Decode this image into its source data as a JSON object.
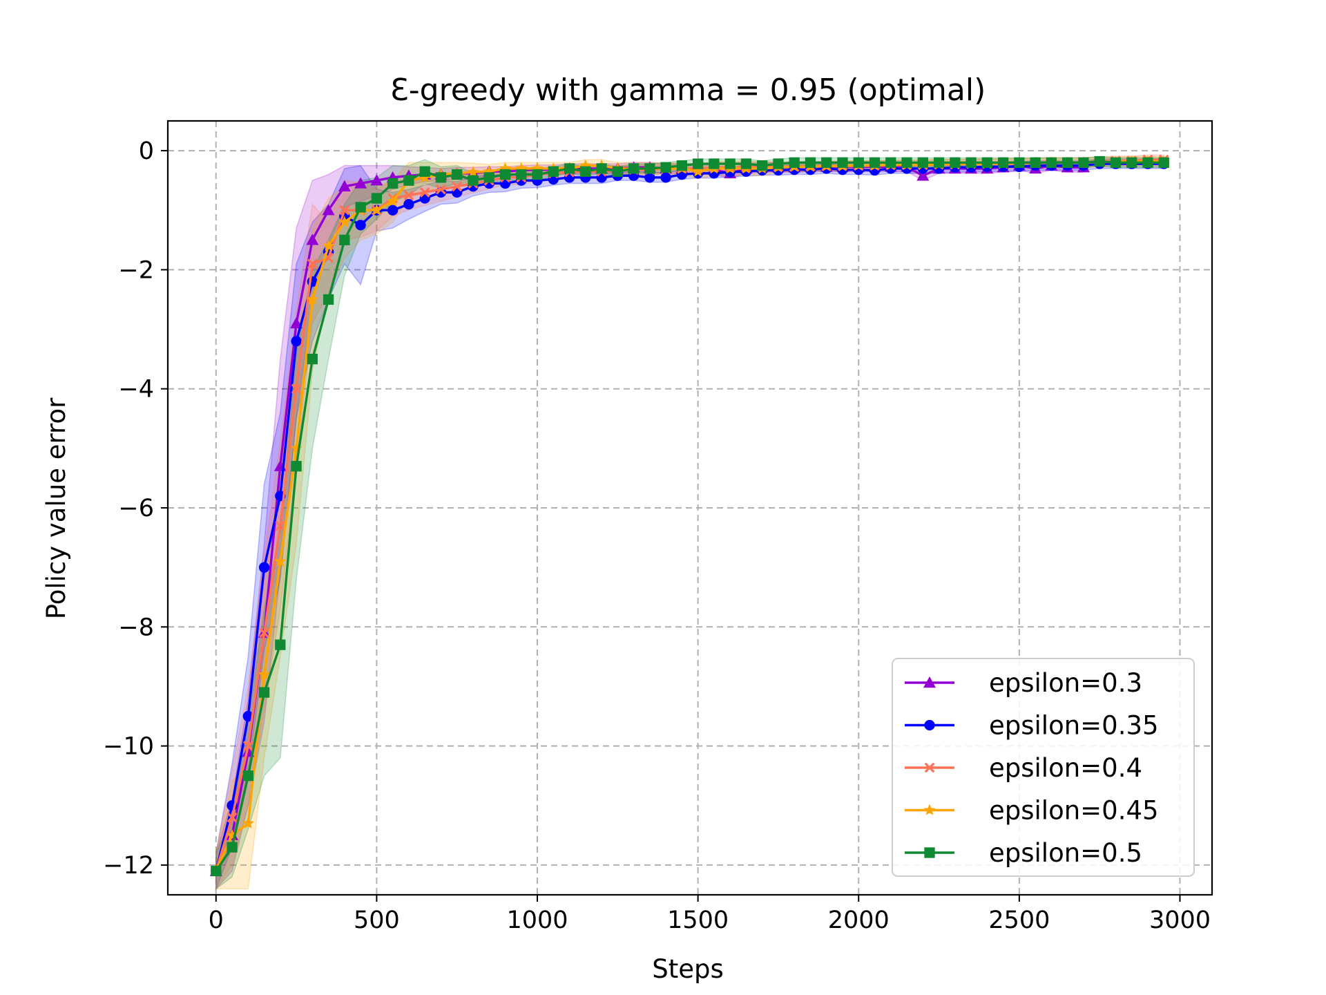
{
  "chart_data": {
    "type": "line",
    "title": "Ɛ-greedy with gamma = 0.95 (optimal)",
    "xlabel": "Steps",
    "ylabel": "Policy value error",
    "xlim": [
      -150,
      3100
    ],
    "ylim": [
      -12.5,
      0.5
    ],
    "xticks": [
      0,
      500,
      1000,
      1500,
      2000,
      2500,
      3000
    ],
    "xtick_labels": [
      "0",
      "500",
      "1000",
      "1500",
      "2000",
      "2500",
      "3000"
    ],
    "yticks": [
      0,
      -2,
      -4,
      -6,
      -8,
      -10,
      -12
    ],
    "ytick_labels": [
      "0",
      "−2",
      "−4",
      "−6",
      "−8",
      "−10",
      "−12"
    ],
    "grid": true,
    "legend_position": "lower-right",
    "series": [
      {
        "name": "epsilon=0.3",
        "color": "#9400D3",
        "marker": "triangle",
        "x": [
          0,
          50,
          100,
          150,
          200,
          250,
          300,
          350,
          400,
          450,
          500,
          550,
          600,
          650,
          700,
          750,
          800,
          850,
          900,
          950,
          1000,
          1050,
          1100,
          1150,
          1200,
          1250,
          1300,
          1350,
          1400,
          1450,
          1500,
          1550,
          1600,
          1650,
          1700,
          1750,
          1800,
          1850,
          1900,
          1950,
          2000,
          2050,
          2100,
          2150,
          2200,
          2250,
          2300,
          2350,
          2400,
          2450,
          2500,
          2550,
          2600,
          2650,
          2700
        ],
        "y": [
          -12.1,
          -11.5,
          -10.1,
          -8.1,
          -5.3,
          -2.9,
          -1.5,
          -1.0,
          -0.6,
          -0.55,
          -0.5,
          -0.45,
          -0.42,
          -0.4,
          -0.4,
          -0.38,
          -0.38,
          -0.35,
          -0.35,
          -0.33,
          -0.32,
          -0.32,
          -0.3,
          -0.3,
          -0.3,
          -0.3,
          -0.28,
          -0.28,
          -0.3,
          -0.3,
          -0.32,
          -0.32,
          -0.38,
          -0.3,
          -0.28,
          -0.28,
          -0.28,
          -0.27,
          -0.27,
          -0.27,
          -0.27,
          -0.27,
          -0.27,
          -0.27,
          -0.42,
          -0.3,
          -0.3,
          -0.3,
          -0.3,
          -0.28,
          -0.25,
          -0.3,
          -0.25,
          -0.28,
          -0.28
        ],
        "band": [
          0.3,
          0.6,
          0.9,
          1.5,
          1.8,
          1.6,
          1.0,
          0.6,
          0.35,
          0.3,
          0.25,
          0.2,
          0.15,
          0.12,
          0.1,
          0.1,
          0.1,
          0.08,
          0.08,
          0.08,
          0.08,
          0.08,
          0.08,
          0.08,
          0.08,
          0.08,
          0.08,
          0.08,
          0.08,
          0.08,
          0.08,
          0.08,
          0.08,
          0.08,
          0.08,
          0.08,
          0.08,
          0.08,
          0.08,
          0.08,
          0.08,
          0.08,
          0.08,
          0.08,
          0.08,
          0.08,
          0.08,
          0.08,
          0.08,
          0.08,
          0.08,
          0.08,
          0.08,
          0.08,
          0.08
        ]
      },
      {
        "name": "epsilon=0.35",
        "color": "#0000FF",
        "marker": "circle",
        "x": [
          0,
          50,
          100,
          150,
          200,
          250,
          300,
          350,
          400,
          450,
          500,
          550,
          600,
          650,
          700,
          750,
          800,
          850,
          900,
          950,
          1000,
          1050,
          1100,
          1150,
          1200,
          1250,
          1300,
          1350,
          1400,
          1450,
          1500,
          1550,
          1600,
          1650,
          1700,
          1750,
          1800,
          1850,
          1900,
          1950,
          2000,
          2050,
          2100,
          2150,
          2200,
          2250,
          2300,
          2350,
          2400,
          2450,
          2500,
          2550,
          2600,
          2650,
          2700,
          2750,
          2800,
          2850,
          2900,
          2950
        ],
        "y": [
          -12.1,
          -11.0,
          -9.5,
          -7.0,
          -5.8,
          -3.2,
          -2.2,
          -1.7,
          -1.1,
          -1.25,
          -1.0,
          -1.0,
          -0.9,
          -0.8,
          -0.7,
          -0.7,
          -0.6,
          -0.55,
          -0.55,
          -0.5,
          -0.5,
          -0.48,
          -0.45,
          -0.45,
          -0.45,
          -0.42,
          -0.42,
          -0.45,
          -0.45,
          -0.4,
          -0.38,
          -0.38,
          -0.36,
          -0.35,
          -0.33,
          -0.33,
          -0.32,
          -0.32,
          -0.3,
          -0.32,
          -0.32,
          -0.33,
          -0.3,
          -0.3,
          -0.3,
          -0.3,
          -0.28,
          -0.28,
          -0.27,
          -0.27,
          -0.27,
          -0.25,
          -0.25,
          -0.25,
          -0.25,
          -0.22,
          -0.22,
          -0.22,
          -0.22,
          -0.22
        ],
        "band": [
          0.3,
          0.7,
          1.0,
          1.4,
          1.4,
          1.3,
          1.0,
          0.8,
          0.8,
          1.0,
          0.35,
          0.3,
          0.25,
          0.22,
          0.2,
          0.18,
          0.16,
          0.15,
          0.14,
          0.13,
          0.12,
          0.1,
          0.1,
          0.1,
          0.1,
          0.08,
          0.08,
          0.08,
          0.08,
          0.08,
          0.08,
          0.08,
          0.08,
          0.08,
          0.08,
          0.08,
          0.08,
          0.08,
          0.08,
          0.08,
          0.08,
          0.08,
          0.08,
          0.08,
          0.08,
          0.08,
          0.08,
          0.08,
          0.08,
          0.08,
          0.08,
          0.08,
          0.08,
          0.08,
          0.08,
          0.08,
          0.08,
          0.08,
          0.08,
          0.08
        ]
      },
      {
        "name": "epsilon=0.4",
        "color": "#FF7256",
        "marker": "x",
        "x": [
          0,
          50,
          100,
          150,
          200,
          250,
          300,
          350,
          400,
          450,
          500,
          550,
          600,
          650,
          700,
          750,
          800,
          850,
          900,
          950,
          1000,
          1050,
          1100,
          1150,
          1200,
          1250,
          1300,
          1350,
          1400,
          1450,
          1500,
          1550,
          1600,
          1650,
          1700,
          1750,
          1800,
          1850,
          1900,
          1950,
          2000,
          2050,
          2100,
          2150,
          2200,
          2250,
          2300,
          2350,
          2400,
          2450,
          2500,
          2550,
          2600,
          2650,
          2700,
          2750,
          2800,
          2850,
          2900,
          2950
        ],
        "y": [
          -12.1,
          -11.2,
          -10.0,
          -8.1,
          -6.3,
          -4.0,
          -1.9,
          -1.8,
          -1.0,
          -1.0,
          -1.0,
          -0.8,
          -0.75,
          -0.7,
          -0.65,
          -0.6,
          -0.55,
          -0.5,
          -0.45,
          -0.45,
          -0.4,
          -0.38,
          -0.36,
          -0.35,
          -0.35,
          -0.33,
          -0.32,
          -0.32,
          -0.3,
          -0.3,
          -0.3,
          -0.28,
          -0.28,
          -0.28,
          -0.27,
          -0.27,
          -0.27,
          -0.26,
          -0.26,
          -0.25,
          -0.25,
          -0.25,
          -0.24,
          -0.24,
          -0.24,
          -0.23,
          -0.23,
          -0.22,
          -0.22,
          -0.22,
          -0.21,
          -0.21,
          -0.2,
          -0.2,
          -0.2,
          -0.18,
          -0.17,
          -0.17,
          -0.15,
          -0.15
        ],
        "band": [
          0.3,
          0.8,
          1.0,
          1.3,
          1.4,
          1.3,
          1.0,
          0.6,
          0.5,
          0.45,
          0.35,
          0.3,
          0.25,
          0.22,
          0.2,
          0.18,
          0.16,
          0.14,
          0.12,
          0.12,
          0.1,
          0.1,
          0.1,
          0.1,
          0.1,
          0.08,
          0.08,
          0.08,
          0.08,
          0.08,
          0.08,
          0.08,
          0.08,
          0.08,
          0.08,
          0.08,
          0.08,
          0.08,
          0.08,
          0.08,
          0.08,
          0.08,
          0.08,
          0.08,
          0.08,
          0.08,
          0.08,
          0.08,
          0.08,
          0.08,
          0.08,
          0.08,
          0.08,
          0.08,
          0.08,
          0.08,
          0.08,
          0.08,
          0.08,
          0.08
        ]
      },
      {
        "name": "epsilon=0.45",
        "color": "#FFA500",
        "marker": "star",
        "x": [
          0,
          50,
          100,
          150,
          200,
          250,
          300,
          350,
          400,
          450,
          500,
          550,
          600,
          650,
          700,
          750,
          800,
          850,
          900,
          950,
          1000,
          1050,
          1100,
          1150,
          1200,
          1250,
          1300,
          1350,
          1400,
          1450,
          1500,
          1550,
          1600,
          1650,
          1700,
          1750,
          1800,
          1850,
          1900,
          1950,
          2000,
          2050,
          2100,
          2150,
          2200,
          2250,
          2300,
          2350,
          2400,
          2450,
          2500,
          2550,
          2600,
          2650,
          2700,
          2750,
          2800,
          2850,
          2900,
          2950
        ],
        "y": [
          -12.1,
          -11.5,
          -11.3,
          -8.8,
          -6.9,
          -5.0,
          -2.5,
          -1.6,
          -1.2,
          -1.0,
          -1.0,
          -0.85,
          -0.5,
          -0.45,
          -0.4,
          -0.38,
          -0.36,
          -0.35,
          -0.3,
          -0.3,
          -0.3,
          -0.3,
          -0.3,
          -0.25,
          -0.25,
          -0.3,
          -0.3,
          -0.3,
          -0.3,
          -0.3,
          -0.35,
          -0.3,
          -0.3,
          -0.3,
          -0.3,
          -0.28,
          -0.27,
          -0.27,
          -0.26,
          -0.26,
          -0.25,
          -0.25,
          -0.24,
          -0.24,
          -0.23,
          -0.23,
          -0.22,
          -0.22,
          -0.22,
          -0.21,
          -0.21,
          -0.2,
          -0.2,
          -0.2,
          -0.2,
          -0.19,
          -0.19,
          -0.18,
          -0.18,
          -0.18
        ],
        "band": [
          0.3,
          0.9,
          1.1,
          1.4,
          1.6,
          1.6,
          1.2,
          0.8,
          0.6,
          0.5,
          0.4,
          0.35,
          0.3,
          0.25,
          0.2,
          0.18,
          0.15,
          0.12,
          0.1,
          0.1,
          0.1,
          0.1,
          0.1,
          0.1,
          0.1,
          0.1,
          0.1,
          0.1,
          0.1,
          0.1,
          0.12,
          0.12,
          0.12,
          0.12,
          0.12,
          0.08,
          0.08,
          0.08,
          0.08,
          0.08,
          0.08,
          0.08,
          0.08,
          0.08,
          0.08,
          0.08,
          0.08,
          0.08,
          0.08,
          0.08,
          0.08,
          0.08,
          0.08,
          0.08,
          0.08,
          0.08,
          0.08,
          0.08,
          0.08,
          0.08
        ]
      },
      {
        "name": "epsilon=0.5",
        "color": "#108A32",
        "marker": "square",
        "x": [
          0,
          50,
          100,
          150,
          200,
          250,
          300,
          350,
          400,
          450,
          500,
          550,
          600,
          650,
          700,
          750,
          800,
          850,
          900,
          950,
          1000,
          1050,
          1100,
          1150,
          1200,
          1250,
          1300,
          1350,
          1400,
          1450,
          1500,
          1550,
          1600,
          1650,
          1700,
          1750,
          1800,
          1850,
          1900,
          1950,
          2000,
          2050,
          2100,
          2150,
          2200,
          2250,
          2300,
          2350,
          2400,
          2450,
          2500,
          2550,
          2600,
          2650,
          2700,
          2750,
          2800,
          2850,
          2900,
          2950
        ],
        "y": [
          -12.1,
          -11.7,
          -10.5,
          -9.1,
          -8.3,
          -5.3,
          -3.5,
          -2.5,
          -1.5,
          -0.95,
          -0.8,
          -0.55,
          -0.5,
          -0.35,
          -0.45,
          -0.4,
          -0.5,
          -0.45,
          -0.4,
          -0.4,
          -0.4,
          -0.35,
          -0.3,
          -0.35,
          -0.3,
          -0.35,
          -0.3,
          -0.3,
          -0.28,
          -0.25,
          -0.22,
          -0.22,
          -0.22,
          -0.22,
          -0.25,
          -0.22,
          -0.2,
          -0.2,
          -0.2,
          -0.2,
          -0.2,
          -0.2,
          -0.2,
          -0.2,
          -0.2,
          -0.2,
          -0.2,
          -0.2,
          -0.2,
          -0.2,
          -0.2,
          -0.2,
          -0.2,
          -0.2,
          -0.2,
          -0.18,
          -0.2,
          -0.2,
          -0.2,
          -0.2
        ],
        "band": [
          0.3,
          0.5,
          0.9,
          1.4,
          1.9,
          1.9,
          1.5,
          1.0,
          0.6,
          0.45,
          0.35,
          0.3,
          0.25,
          0.2,
          0.18,
          0.15,
          0.12,
          0.1,
          0.1,
          0.1,
          0.1,
          0.08,
          0.08,
          0.08,
          0.08,
          0.08,
          0.08,
          0.08,
          0.08,
          0.08,
          0.08,
          0.08,
          0.08,
          0.08,
          0.08,
          0.08,
          0.08,
          0.08,
          0.08,
          0.08,
          0.08,
          0.08,
          0.08,
          0.08,
          0.08,
          0.08,
          0.08,
          0.08,
          0.08,
          0.08,
          0.08,
          0.08,
          0.08,
          0.08,
          0.08,
          0.08,
          0.08,
          0.08,
          0.08,
          0.08
        ]
      }
    ]
  }
}
